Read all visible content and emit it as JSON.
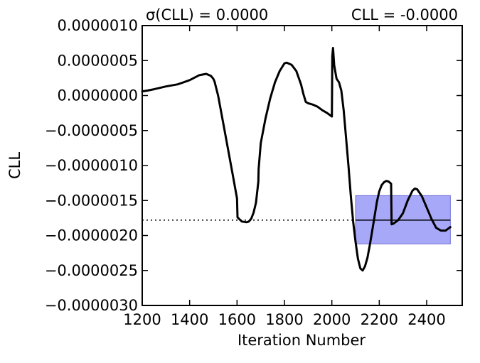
{
  "chart_data": {
    "type": "line",
    "header_left": "σ(CLL) = 0.0000",
    "header_right": "CLL = -0.0000",
    "xlabel": "Iteration Number",
    "ylabel": "CLL",
    "xlim": [
      1200,
      2550
    ],
    "ylim": [
      -3e-06,
      1e-06
    ],
    "x_ticks": [
      1200,
      1400,
      1600,
      1800,
      2000,
      2200,
      2400
    ],
    "x_tick_labels": [
      "1200",
      "1400",
      "1600",
      "1800",
      "2000",
      "2200",
      "2400"
    ],
    "y_ticks": [
      1e-06,
      5e-07,
      0.0,
      -5e-07,
      -1e-06,
      -1.5e-06,
      -2e-06,
      -2.5e-06,
      -3e-06
    ],
    "y_tick_labels": [
      "0.0000010",
      "0.0000005",
      "0.0000000",
      "−0.0000005",
      "−0.0000010",
      "−0.0000015",
      "−0.0000020",
      "−0.0000025",
      "−0.0000030"
    ],
    "grid": false,
    "series": [
      {
        "x": [
          1200,
          1220,
          1250,
          1300,
          1350,
          1400,
          1440,
          1470,
          1490,
          1500,
          1505,
          1520,
          1540,
          1560,
          1580,
          1600,
          1602,
          1620,
          1640,
          1650,
          1660,
          1670,
          1680,
          1690,
          1691,
          1700,
          1720,
          1740,
          1760,
          1780,
          1800,
          1810,
          1830,
          1850,
          1870,
          1880,
          1890,
          1900,
          1920,
          1940,
          1960,
          1980,
          2000,
          2002,
          2005,
          2010,
          2020,
          2030,
          2040,
          2050,
          2060,
          2070,
          2080,
          2090,
          2100,
          2110,
          2120,
          2130,
          2140,
          2150,
          2160,
          2170,
          2180,
          2190,
          2200,
          2210,
          2220,
          2230,
          2240,
          2250,
          2252,
          2260,
          2280,
          2300,
          2320,
          2340,
          2350,
          2360,
          2380,
          2400,
          2420,
          2440,
          2460,
          2480,
          2500
        ],
        "y": [
          6e-08,
          7e-08,
          9e-08,
          1.3e-07,
          1.6e-07,
          2.2e-07,
          2.9e-07,
          3.1e-07,
          2.8e-07,
          2.4e-07,
          2e-07,
          0.0,
          -3.6e-07,
          -7.3e-07,
          -1.1e-06,
          -1.47e-06,
          -1.74e-06,
          -1.8e-06,
          -1.81e-06,
          -1.8e-06,
          -1.76e-06,
          -1.67e-06,
          -1.53e-06,
          -1.23e-06,
          -1.05e-06,
          -6.8e-07,
          -3.3e-07,
          -4e-08,
          1.9e-07,
          3.5e-07,
          4.6e-07,
          4.7e-07,
          4.4e-07,
          3.5e-07,
          1.6e-07,
          2e-08,
          -9e-08,
          -1.1e-07,
          -1.3e-07,
          -1.6e-07,
          -2.1e-07,
          -2.5e-07,
          -3e-07,
          5.6e-07,
          6.8e-07,
          4.3e-07,
          2.4e-07,
          1.9e-07,
          7e-08,
          -2.1e-07,
          -6.1e-07,
          -1e-06,
          -1.43e-06,
          -1.81e-06,
          -2.09e-06,
          -2.33e-06,
          -2.47e-06,
          -2.5e-06,
          -2.44e-06,
          -2.32e-06,
          -2.14e-06,
          -1.94e-06,
          -1.73e-06,
          -1.52e-06,
          -1.37e-06,
          -1.28e-06,
          -1.24e-06,
          -1.22e-06,
          -1.23e-06,
          -1.26e-06,
          -1.84e-06,
          -1.83e-06,
          -1.78e-06,
          -1.68e-06,
          -1.5e-06,
          -1.36e-06,
          -1.33e-06,
          -1.34e-06,
          -1.44e-06,
          -1.6e-06,
          -1.76e-06,
          -1.89e-06,
          -1.93e-06,
          -1.93e-06,
          -1.88e-06
        ]
      }
    ],
    "mean_line": {
      "y": -1.78e-06,
      "x_end": 2100,
      "style": "dotted"
    },
    "band": {
      "x_start": 2100,
      "x_end": 2500,
      "y_low": -2.12e-06,
      "y_high": -1.43e-06,
      "color": "#a8a8f8",
      "mean": -1.78e-06
    }
  }
}
